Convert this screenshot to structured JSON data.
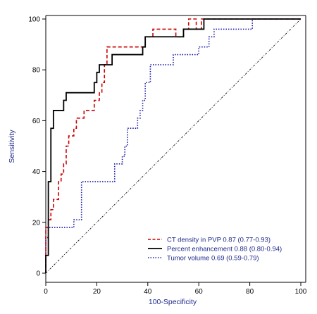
{
  "chart_data": {
    "type": "line",
    "xlabel": "100-Specificity",
    "ylabel": "Sensitivity",
    "xlim": [
      0,
      100
    ],
    "ylim": [
      0,
      100
    ],
    "xticks": [
      0,
      20,
      40,
      60,
      80,
      100
    ],
    "yticks": [
      0,
      20,
      40,
      60,
      80,
      100
    ],
    "grid": false,
    "legend_position": "bottom-right",
    "diagonal": {
      "x": [
        0,
        100
      ],
      "y": [
        0,
        100
      ],
      "color": "#000000",
      "style": "dash-dot"
    },
    "series": [
      {
        "name": "CT density in PVP 0.87 (0.77-0.93)",
        "color": "#cc0000",
        "style": "dashed",
        "x": [
          0,
          0,
          1,
          1,
          2,
          2,
          3,
          3,
          5,
          5,
          6,
          6,
          7,
          7,
          8,
          8,
          9,
          9,
          11,
          11,
          12,
          12,
          15,
          15,
          19,
          19,
          21,
          21,
          22,
          22,
          23,
          23,
          24,
          24,
          39,
          39,
          42,
          42,
          51,
          51,
          54,
          54,
          56,
          56,
          59,
          59,
          61,
          61,
          100
        ],
        "y": [
          0,
          18,
          18,
          21,
          21,
          25,
          25,
          29,
          29,
          36,
          36,
          39,
          39,
          43,
          43,
          50,
          50,
          54,
          54,
          57,
          57,
          61,
          61,
          64,
          64,
          68,
          68,
          71,
          71,
          75,
          75,
          82,
          82,
          89,
          89,
          93,
          93,
          96,
          96,
          93,
          93,
          96,
          96,
          100,
          100,
          96,
          96,
          100,
          100
        ]
      },
      {
        "name": "Percent enhancement 0.88 (0.80-0.94)",
        "color": "#000000",
        "style": "solid",
        "x": [
          0,
          0,
          1,
          1,
          2,
          2,
          3,
          3,
          6,
          6,
          7,
          7,
          8,
          8,
          9,
          9,
          19,
          19,
          20,
          20,
          21,
          21,
          24,
          24,
          26,
          26,
          38,
          38,
          39,
          39,
          52,
          52,
          54,
          54,
          61,
          61,
          62,
          62,
          100
        ],
        "y": [
          0,
          7,
          7,
          36,
          36,
          57,
          57,
          64,
          64,
          64,
          64,
          68,
          68,
          71,
          71,
          71,
          71,
          75,
          75,
          79,
          79,
          82,
          82,
          82,
          82,
          86,
          86,
          89,
          89,
          93,
          93,
          93,
          93,
          96,
          96,
          96,
          96,
          100,
          100
        ]
      },
      {
        "name": "Tumor volume 0.69 (0.59-0.79)",
        "color": "#1a1aa8",
        "style": "dotted",
        "x": [
          0,
          0,
          1,
          1,
          11,
          11,
          13,
          13,
          14,
          14,
          27,
          27,
          30,
          30,
          31,
          31,
          32,
          32,
          36,
          36,
          37,
          37,
          38,
          38,
          39,
          39,
          41,
          41,
          50,
          50,
          54,
          54,
          60,
          60,
          61,
          61,
          64,
          64,
          66,
          66,
          74,
          74,
          81,
          81,
          100
        ],
        "y": [
          0,
          14,
          14,
          18,
          18,
          21,
          21,
          21,
          21,
          36,
          36,
          43,
          43,
          46,
          46,
          50,
          50,
          57,
          57,
          61,
          61,
          64,
          64,
          68,
          68,
          75,
          75,
          82,
          82,
          86,
          86,
          86,
          86,
          89,
          89,
          89,
          89,
          93,
          93,
          96,
          96,
          96,
          96,
          100,
          100
        ]
      }
    ]
  }
}
